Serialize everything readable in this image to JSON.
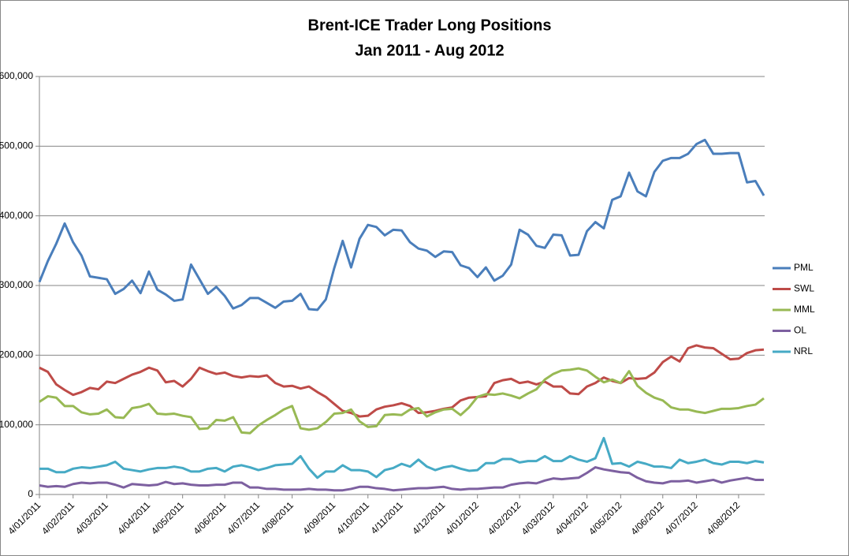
{
  "chart_data": {
    "type": "line",
    "title": "Brent-ICE Trader Long Positions",
    "subtitle": "Jan 2011 - Aug 2012",
    "categories": [
      "4/01/2011",
      null,
      null,
      null,
      "4/02/2011",
      null,
      null,
      null,
      "4/03/2011",
      null,
      null,
      null,
      null,
      "4/04/2011",
      null,
      null,
      null,
      "4/05/2011",
      null,
      null,
      null,
      null,
      "4/06/2011",
      null,
      null,
      null,
      "4/07/2011",
      null,
      null,
      null,
      "4/08/2011",
      null,
      null,
      null,
      null,
      "4/09/2011",
      null,
      null,
      null,
      "4/10/2011",
      null,
      null,
      null,
      "4/11/2011",
      null,
      null,
      null,
      null,
      "4/12/2011",
      null,
      null,
      null,
      "4/01/2012",
      null,
      null,
      null,
      null,
      "4/02/2012",
      null,
      null,
      null,
      "4/03/2012",
      null,
      null,
      null,
      "4/04/2012",
      null,
      null,
      null,
      "4/05/2012",
      null,
      null,
      null,
      null,
      "4/06/2012",
      null,
      null,
      null,
      "4/07/2012",
      null,
      null,
      null,
      null,
      "4/08/2012",
      null,
      null,
      null
    ],
    "ylim": [
      0,
      600000
    ],
    "yticks": [
      0,
      {
        "value": 100000,
        "label": "100,000"
      },
      {
        "value": 200000,
        "label": "200,000"
      },
      {
        "value": 300000,
        "label": "300,000"
      },
      {
        "value": 400000,
        "label": "400,000"
      },
      {
        "value": 500000,
        "label": "500,000"
      },
      {
        "value": 600000,
        "label": "600,000"
      }
    ],
    "grid": true,
    "legend": "right",
    "series": [
      {
        "name": "PML",
        "color": "#4a7ebb",
        "values": [
          305000,
          335000,
          360000,
          389000,
          362000,
          343000,
          313000,
          311000,
          309000,
          288000,
          295000,
          307000,
          289000,
          320000,
          294000,
          287000,
          278000,
          280000,
          330000,
          309000,
          288000,
          298000,
          285000,
          267000,
          272000,
          282000,
          282000,
          275000,
          268000,
          277000,
          278000,
          288000,
          266000,
          265000,
          280000,
          325000,
          364000,
          326000,
          367000,
          387000,
          384000,
          372000,
          380000,
          379000,
          362000,
          353000,
          350000,
          341000,
          349000,
          348000,
          329000,
          325000,
          312000,
          326000,
          307000,
          314000,
          330000,
          380000,
          373000,
          357000,
          354000,
          373000,
          372000,
          343000,
          344000,
          378000,
          391000,
          382000,
          423000,
          428000,
          462000,
          435000,
          428000,
          463000,
          479000,
          483000,
          483000,
          489000,
          503000,
          509000,
          489000,
          489000,
          490000,
          490000,
          448000,
          450000,
          429000
        ]
      },
      {
        "name": "SWL",
        "color": "#be4b48",
        "values": [
          182000,
          176000,
          158000,
          150000,
          143000,
          147000,
          153000,
          151000,
          162000,
          160000,
          166000,
          172000,
          176000,
          182000,
          178000,
          161000,
          163000,
          155000,
          166000,
          182000,
          177000,
          173000,
          175000,
          170000,
          168000,
          170000,
          169000,
          171000,
          160000,
          155000,
          156000,
          152000,
          155000,
          147000,
          140000,
          130000,
          120000,
          117000,
          112000,
          113000,
          122000,
          126000,
          128000,
          131000,
          127000,
          117000,
          118000,
          120000,
          123000,
          125000,
          135000,
          139000,
          140000,
          141000,
          160000,
          164000,
          166000,
          160000,
          162000,
          158000,
          162000,
          155000,
          155000,
          145000,
          144000,
          155000,
          160000,
          168000,
          163000,
          160000,
          167000,
          166000,
          167000,
          175000,
          190000,
          198000,
          191000,
          210000,
          214000,
          211000,
          210000,
          202000,
          194000,
          195000,
          203000,
          207000,
          208000
        ]
      },
      {
        "name": "MML",
        "color": "#98b954",
        "values": [
          133000,
          141000,
          139000,
          127000,
          127000,
          118000,
          115000,
          116000,
          122000,
          111000,
          110000,
          124000,
          126000,
          130000,
          116000,
          115000,
          116000,
          113000,
          111000,
          94000,
          95000,
          107000,
          106000,
          111000,
          89000,
          88000,
          99000,
          107000,
          114000,
          122000,
          127000,
          95000,
          93000,
          95000,
          104000,
          116000,
          117000,
          122000,
          105000,
          97000,
          98000,
          114000,
          115000,
          114000,
          122000,
          124000,
          112000,
          118000,
          122000,
          123000,
          114000,
          125000,
          140000,
          144000,
          143000,
          145000,
          142000,
          138000,
          145000,
          151000,
          165000,
          173000,
          178000,
          179000,
          181000,
          178000,
          169000,
          161000,
          165000,
          160000,
          177000,
          156000,
          146000,
          139000,
          135000,
          125000,
          122000,
          122000,
          119000,
          117000,
          120000,
          123000,
          123000,
          124000,
          127000,
          129000,
          138000
        ]
      },
      {
        "name": "OL",
        "color": "#7d60a0",
        "values": [
          13000,
          11000,
          12000,
          11000,
          15000,
          17000,
          16000,
          17000,
          17000,
          14000,
          10000,
          15000,
          14000,
          13000,
          14000,
          18000,
          15000,
          16000,
          14000,
          13000,
          13000,
          14000,
          14000,
          17000,
          17000,
          10000,
          10000,
          8000,
          8000,
          7000,
          7000,
          7000,
          8000,
          7000,
          7000,
          6000,
          6000,
          8000,
          11000,
          11000,
          9000,
          8000,
          6000,
          7000,
          8000,
          9000,
          9000,
          10000,
          11000,
          8000,
          7000,
          8000,
          8000,
          9000,
          10000,
          10000,
          14000,
          16000,
          17000,
          16000,
          20000,
          23000,
          22000,
          23000,
          24000,
          31000,
          39000,
          36000,
          34000,
          32000,
          31000,
          24000,
          19000,
          17000,
          16000,
          19000,
          19000,
          20000,
          17000,
          19000,
          21000,
          17000,
          20000,
          22000,
          24000,
          21000,
          21000
        ]
      },
      {
        "name": "NRL",
        "color": "#46aac5",
        "values": [
          37000,
          37000,
          32000,
          32000,
          37000,
          39000,
          38000,
          40000,
          42000,
          47000,
          37000,
          35000,
          33000,
          36000,
          38000,
          38000,
          40000,
          38000,
          33000,
          33000,
          37000,
          38000,
          33000,
          40000,
          42000,
          39000,
          35000,
          38000,
          42000,
          43000,
          44000,
          55000,
          37000,
          24000,
          33000,
          33000,
          42000,
          35000,
          35000,
          33000,
          25000,
          35000,
          38000,
          44000,
          40000,
          50000,
          40000,
          35000,
          39000,
          41000,
          37000,
          34000,
          35000,
          45000,
          45000,
          51000,
          51000,
          46000,
          48000,
          48000,
          55000,
          48000,
          48000,
          55000,
          50000,
          47000,
          52000,
          81000,
          44000,
          45000,
          40000,
          47000,
          44000,
          40000,
          40000,
          38000,
          50000,
          45000,
          47000,
          50000,
          45000,
          43000,
          47000,
          47000,
          45000,
          48000,
          46000
        ]
      }
    ]
  }
}
